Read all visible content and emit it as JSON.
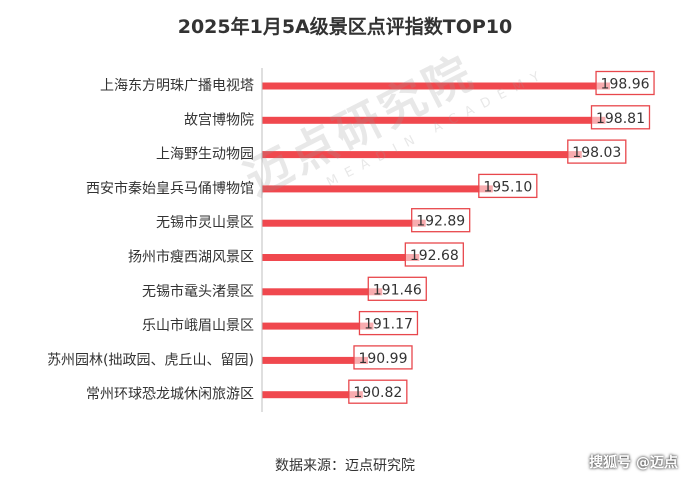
{
  "chart_data": {
    "type": "bar",
    "orientation": "horizontal",
    "title": "2025年1月5A级景区点评指数TOP10",
    "categories": [
      "上海东方明珠广播电视塔",
      "故宫博物院",
      "上海野生动物园",
      "西安市秦始皇兵马俑博物馆",
      "无锡市灵山景区",
      "扬州市瘦西湖风景区",
      "无锡市鼋头渚景区",
      "乐山市峨眉山景区",
      "苏州园林(拙政园、虎丘山、留园)",
      "常州环球恐龙城休闲旅游区"
    ],
    "values": [
      198.96,
      198.81,
      198.03,
      195.1,
      192.89,
      192.68,
      191.46,
      191.17,
      190.99,
      190.82
    ],
    "value_labels": [
      "198.96",
      "198.81",
      "198.03",
      "195.10",
      "192.89",
      "192.68",
      "191.46",
      "191.17",
      "190.99",
      "190.82"
    ],
    "xlim": [
      187.5,
      201
    ],
    "bar_color": "#f0484e",
    "label_box_color": "#e8474c",
    "grid": false,
    "legend": false
  },
  "watermark": {
    "main": "迈点研究院",
    "sub": "MEADIN ACADEMY"
  },
  "source_text": "数据来源：迈点研究院",
  "brand_text": "搜狐号 @迈点"
}
